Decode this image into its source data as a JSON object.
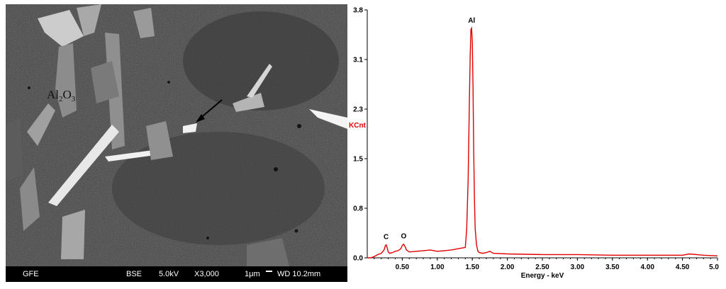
{
  "micrograph": {
    "phase_label_main": "Al",
    "phase_label_sub1": "2",
    "phase_label_mid": "O",
    "phase_label_sub2": "3",
    "info_bar": {
      "vendor": "GFE",
      "detector": "BSE",
      "voltage": "5.0kV",
      "magnification": "X3,000",
      "scale": "1μm",
      "working_distance": "WD 10.2mm"
    }
  },
  "chart_data": {
    "type": "line",
    "title": "",
    "xlabel": "Energy - keV",
    "ylabel": "KCnt",
    "xlim": [
      0.0,
      5.0
    ],
    "ylim": [
      0.0,
      3.8
    ],
    "x_ticks": [
      "0.50",
      "1.00",
      "1.50",
      "2.00",
      "2.50",
      "3.00",
      "3.50",
      "4.00",
      "4.50",
      "5.0"
    ],
    "y_ticks": [
      "0.0",
      "0.8",
      "1.5",
      "2.3",
      "3.1",
      "3.8"
    ],
    "series": [
      {
        "x": [
          0.0,
          0.05,
          0.1,
          0.15,
          0.2,
          0.24,
          0.26,
          0.27,
          0.28,
          0.3,
          0.32,
          0.36,
          0.4,
          0.44,
          0.48,
          0.5,
          0.52,
          0.54,
          0.56,
          0.6,
          0.7,
          0.8,
          0.9,
          1.0,
          1.1,
          1.2,
          1.3,
          1.35,
          1.4,
          1.42,
          1.44,
          1.46,
          1.47,
          1.48,
          1.49,
          1.5,
          1.51,
          1.52,
          1.53,
          1.54,
          1.56,
          1.58,
          1.6,
          1.65,
          1.7,
          1.75,
          1.8,
          2.0,
          2.5,
          3.0,
          3.5,
          4.0,
          4.5,
          4.6,
          4.8,
          5.0
        ],
        "y": [
          0.0,
          0.0,
          0.02,
          0.05,
          0.07,
          0.12,
          0.19,
          0.2,
          0.17,
          0.09,
          0.07,
          0.08,
          0.1,
          0.11,
          0.14,
          0.19,
          0.21,
          0.17,
          0.12,
          0.09,
          0.1,
          0.11,
          0.12,
          0.1,
          0.11,
          0.12,
          0.14,
          0.15,
          0.16,
          0.45,
          1.2,
          2.5,
          3.1,
          3.5,
          3.52,
          3.3,
          2.6,
          1.6,
          0.9,
          0.45,
          0.2,
          0.1,
          0.08,
          0.07,
          0.08,
          0.1,
          0.07,
          0.06,
          0.05,
          0.05,
          0.04,
          0.04,
          0.04,
          0.06,
          0.04,
          0.03
        ]
      }
    ],
    "annotations": [
      {
        "text": "C",
        "x": 0.27,
        "y": 0.2
      },
      {
        "text": "O",
        "x": 0.52,
        "y": 0.21
      },
      {
        "text": "Al",
        "x": 1.49,
        "y": 3.52
      }
    ],
    "line_color": "#e00000",
    "ylabel_color": "#e00000",
    "grid": false
  }
}
